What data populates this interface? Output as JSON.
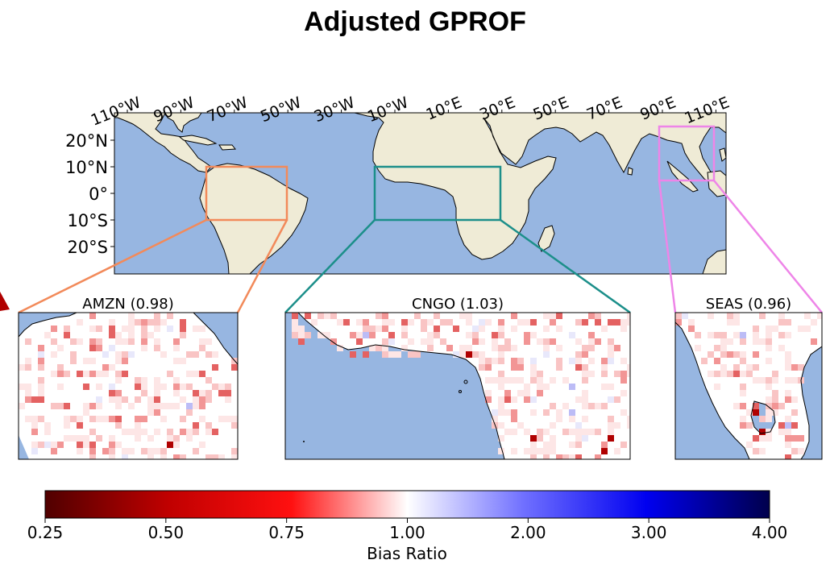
{
  "title": "Adjusted GPROF",
  "colors": {
    "ocean": "#97b6e1",
    "land": "#efebd6",
    "amzn_box": "#f28a5a",
    "cngo_box": "#1c8f8a",
    "seas_box": "#ee85e8"
  },
  "main_map": {
    "lon_ticks": [
      "110°W",
      "90°W",
      "70°W",
      "50°W",
      "30°W",
      "10°W",
      "10°E",
      "30°E",
      "50°E",
      "70°E",
      "90°E",
      "110°E"
    ],
    "lat_ticks": [
      "20°N",
      "10°N",
      "0°",
      "10°S",
      "20°S"
    ]
  },
  "regions": [
    {
      "id": "amzn",
      "label": "AMZN (0.98)",
      "mean_bias_ratio": 0.98
    },
    {
      "id": "cngo",
      "label": "CNGO (1.03)",
      "mean_bias_ratio": 1.03
    },
    {
      "id": "seas",
      "label": "SEAS (0.96)",
      "mean_bias_ratio": 0.96
    }
  ],
  "colorbar": {
    "label": "Bias Ratio",
    "tick_labels": [
      "0.25",
      "0.50",
      "0.75",
      "1.00",
      "2.00",
      "3.00",
      "4.00"
    ],
    "colormap": "seismic_r"
  }
}
